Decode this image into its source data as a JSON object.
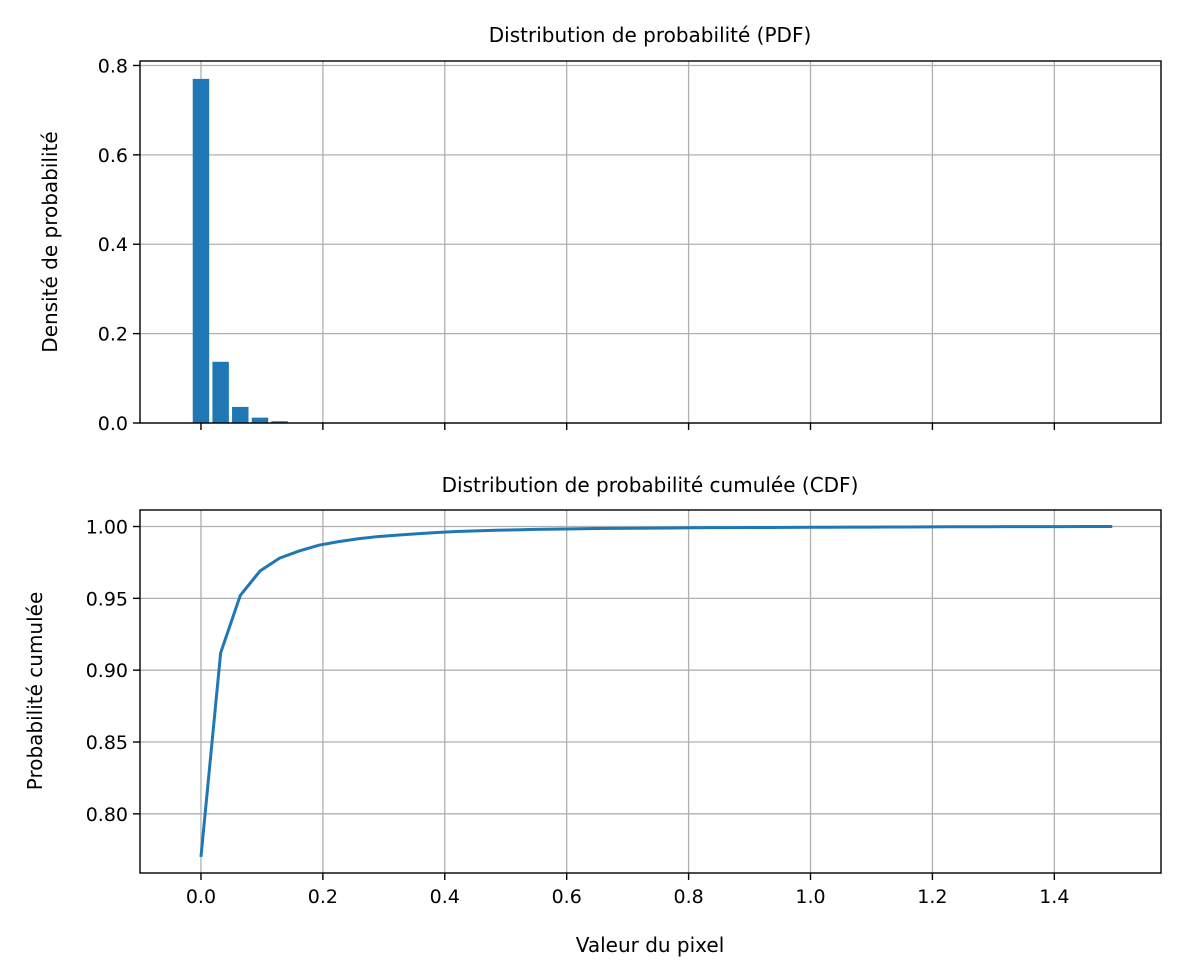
{
  "chart_data": [
    {
      "type": "bar",
      "title": "Distribution de probabilité (PDF)",
      "xlabel": "",
      "ylabel": "Densité de probabilité",
      "x": [
        0.0,
        0.0323,
        0.0645,
        0.0968,
        0.129
      ],
      "values": [
        0.77,
        0.137,
        0.036,
        0.012,
        0.004
      ],
      "bar_width": 0.027,
      "xlim": [
        -0.1,
        1.575
      ],
      "ylim": [
        0,
        0.81
      ],
      "xticks": [
        0.0,
        0.2,
        0.4,
        0.6,
        0.8,
        1.0,
        1.2,
        1.4
      ],
      "show_xtick_labels": false,
      "yticks": [
        0.0,
        0.2,
        0.4,
        0.6,
        0.8
      ],
      "ytick_labels": [
        "0.0",
        "0.2",
        "0.4",
        "0.6",
        "0.8"
      ],
      "grid": true,
      "color": "#1f77b4"
    },
    {
      "type": "line",
      "title": "Distribution de probabilité cumulée (CDF)",
      "xlabel": "Valeur du pixel",
      "ylabel": "Probabilité cumulée",
      "x": [
        0.0,
        0.0323,
        0.0645,
        0.0968,
        0.129,
        0.1613,
        0.1935,
        0.2258,
        0.2581,
        0.2903,
        0.3226,
        0.3548,
        0.3871,
        0.4194,
        0.4516,
        0.4839,
        0.5161,
        0.5484,
        0.5806,
        0.6129,
        0.6452,
        0.6774,
        0.7097,
        0.7419,
        0.7742,
        0.8065,
        0.8387,
        0.871,
        0.9032,
        0.9355,
        0.9677,
        1.0,
        1.0323,
        1.0645,
        1.0968,
        1.129,
        1.1613,
        1.1935,
        1.2258,
        1.2581,
        1.2903,
        1.3226,
        1.3548,
        1.3871,
        1.4194,
        1.4516,
        1.4839,
        1.495
      ],
      "y": [
        0.77,
        0.912,
        0.952,
        0.969,
        0.978,
        0.983,
        0.987,
        0.9895,
        0.9915,
        0.993,
        0.994,
        0.995,
        0.9958,
        0.9965,
        0.997,
        0.9974,
        0.9977,
        0.998,
        0.9982,
        0.9984,
        0.9986,
        0.9987,
        0.9988,
        0.9989,
        0.999,
        0.9991,
        0.9992,
        0.99925,
        0.9993,
        0.99935,
        0.9994,
        0.99945,
        0.9995,
        0.99955,
        0.9996,
        0.99965,
        0.9997,
        0.99975,
        0.9998,
        0.99983,
        0.99986,
        0.99989,
        0.99992,
        0.99994,
        0.99996,
        0.99998,
        0.99999,
        1.0
      ],
      "xlim": [
        -0.1,
        1.575
      ],
      "ylim": [
        0.7588,
        1.0115
      ],
      "xticks": [
        0.0,
        0.2,
        0.4,
        0.6,
        0.8,
        1.0,
        1.2,
        1.4
      ],
      "xtick_labels": [
        "0.0",
        "0.2",
        "0.4",
        "0.6",
        "0.8",
        "1.0",
        "1.2",
        "1.4"
      ],
      "yticks": [
        0.8,
        0.85,
        0.9,
        0.95,
        1.0
      ],
      "ytick_labels": [
        "0.80",
        "0.85",
        "0.90",
        "0.95",
        "1.00"
      ],
      "grid": true,
      "color": "#1f77b4"
    }
  ]
}
